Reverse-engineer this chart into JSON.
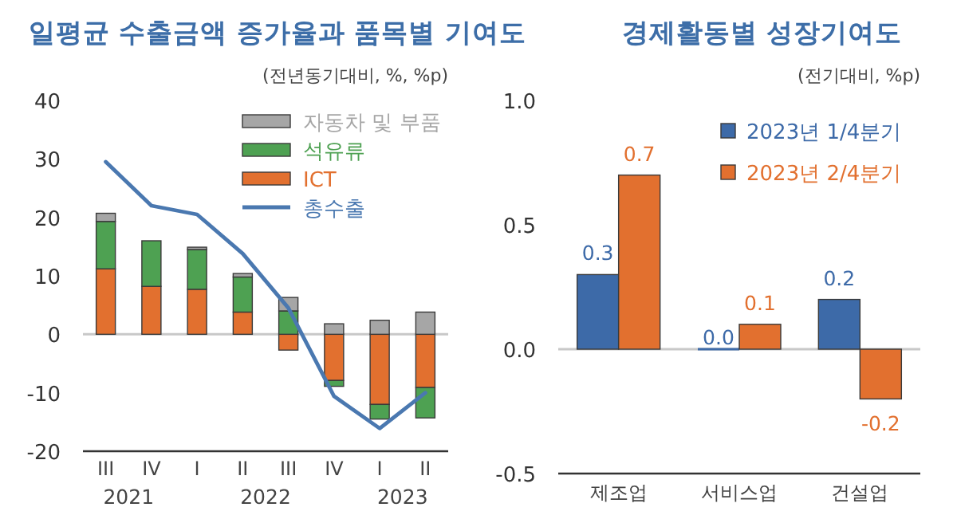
{
  "chart_data": [
    {
      "type": "bar",
      "title": "일평균 수출금액 증가율과 품목별 기여도",
      "subtitle": "(전년동기대비, %, %p)",
      "categories": [
        "III",
        "IV",
        "I",
        "II",
        "III",
        "IV",
        "I",
        "II"
      ],
      "stacked": true,
      "legend": "top right",
      "ylim": [
        -20,
        40
      ],
      "yticks": [
        -20,
        -10,
        0,
        10,
        20,
        30,
        40
      ],
      "series": [
        {
          "name": "ICT",
          "color": "#e2702f",
          "values": [
            11.2,
            8.2,
            7.7,
            3.8,
            -2.7,
            -7.9,
            -12.0,
            -9.1
          ]
        },
        {
          "name": "석유류",
          "color": "#4ea152",
          "values": [
            8.1,
            7.8,
            6.8,
            6.0,
            4.0,
            -1.0,
            -2.5,
            -5.2
          ]
        },
        {
          "name": "자동차 및 부품",
          "color": "#a6a6a6",
          "values": [
            1.4,
            0,
            0.4,
            0.6,
            2.3,
            1.8,
            2.4,
            3.8
          ]
        },
        {
          "name": "총수출",
          "type": "line",
          "color": "#4a78b0",
          "values": [
            29.5,
            22.0,
            20.5,
            13.8,
            4.5,
            -10.6,
            -16.1,
            -10.0
          ]
        }
      ],
      "annotations": [
        "2021",
        "2022",
        "2023"
      ]
    },
    {
      "type": "bar",
      "title": "경제활동별 성장기여도",
      "subtitle": "(전기대비, %p)",
      "categories": [
        "제조업",
        "서비스업",
        "건설업"
      ],
      "legend": "top right",
      "ylim": [
        -0.5,
        1.0
      ],
      "yticks": [
        -0.5,
        {
          "value": 0,
          "label": "0.0"
        },
        0.5,
        {
          "value": 1,
          "label": "1.0"
        }
      ],
      "series": [
        {
          "name": "2023년 1/4분기",
          "color": "#3d6aa8",
          "values": [
            0.3,
            0.0,
            0.2
          ],
          "value_labels": [
            "0.3",
            "0.0",
            "0.2"
          ]
        },
        {
          "name": "2023년 2/4분기",
          "color": "#e2702f",
          "values": [
            0.7,
            0.1,
            -0.2
          ],
          "value_labels": [
            "0.7",
            "0.1",
            "-0.2"
          ]
        }
      ]
    }
  ]
}
